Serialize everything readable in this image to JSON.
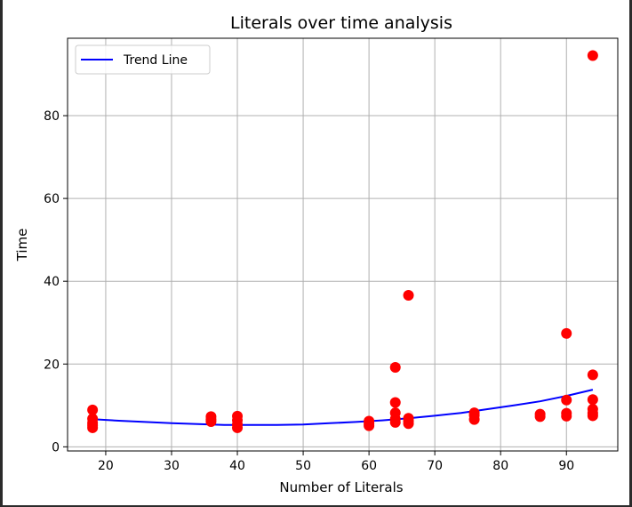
{
  "chart_data": {
    "type": "scatter",
    "title": "Literals over time analysis",
    "xlabel": "Number of Literals",
    "ylabel": "Time",
    "xlim": [
      14.2,
      97.8
    ],
    "ylim": [
      -1.0,
      98.7
    ],
    "xticks": [
      20,
      30,
      40,
      50,
      60,
      70,
      80,
      90
    ],
    "yticks": [
      0,
      20,
      40,
      60,
      80
    ],
    "grid": true,
    "legend_position": "top-left",
    "points_color": "#ff0000",
    "points": [
      [
        18,
        8.9
      ],
      [
        18,
        6.8
      ],
      [
        18,
        5.8
      ],
      [
        18,
        5.2
      ],
      [
        18,
        4.6
      ],
      [
        36,
        7.3
      ],
      [
        36,
        6.6
      ],
      [
        36,
        6.1
      ],
      [
        40,
        7.4
      ],
      [
        40,
        6.4
      ],
      [
        40,
        5.4
      ],
      [
        40,
        4.6
      ],
      [
        60,
        6.2
      ],
      [
        60,
        5.6
      ],
      [
        60,
        5.1
      ],
      [
        64,
        19.2
      ],
      [
        64,
        10.7
      ],
      [
        64,
        8.2
      ],
      [
        64,
        6.7
      ],
      [
        64,
        5.9
      ],
      [
        66,
        36.6
      ],
      [
        66,
        6.9
      ],
      [
        66,
        6.2
      ],
      [
        66,
        5.6
      ],
      [
        76,
        8.2
      ],
      [
        76,
        7.6
      ],
      [
        76,
        6.6
      ],
      [
        86,
        7.9
      ],
      [
        86,
        7.3
      ],
      [
        90,
        27.4
      ],
      [
        90,
        11.3
      ],
      [
        90,
        8.1
      ],
      [
        90,
        7.4
      ],
      [
        94,
        94.5
      ],
      [
        94,
        17.4
      ],
      [
        94,
        11.4
      ],
      [
        94,
        9.1
      ],
      [
        94,
        8.1
      ],
      [
        94,
        7.5
      ]
    ],
    "series": [
      {
        "name": "Trend Line",
        "color": "#0000ff",
        "x": [
          18,
          22,
          26,
          30,
          34,
          38,
          42,
          46,
          50,
          54,
          58,
          62,
          66,
          70,
          74,
          78,
          82,
          86,
          90,
          94
        ],
        "y": [
          6.7,
          6.3,
          6.0,
          5.7,
          5.5,
          5.3,
          5.3,
          5.3,
          5.4,
          5.7,
          6.0,
          6.4,
          6.9,
          7.5,
          8.2,
          9.1,
          10.0,
          11.0,
          12.3,
          13.8
        ]
      }
    ]
  }
}
